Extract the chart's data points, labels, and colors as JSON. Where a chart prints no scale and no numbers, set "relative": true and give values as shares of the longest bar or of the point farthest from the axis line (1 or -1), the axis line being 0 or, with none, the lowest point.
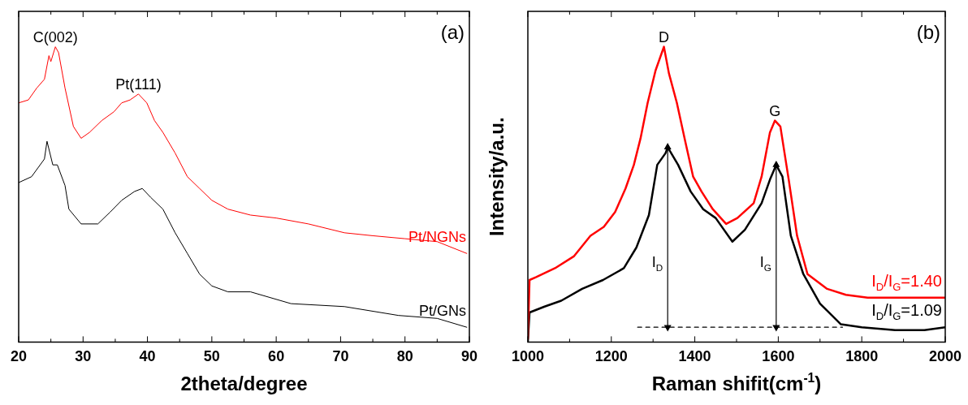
{
  "chart_data": [
    {
      "type": "line",
      "relative": true,
      "xlabel": "2theta/degree",
      "xlim": [
        20,
        90
      ],
      "tick_labels": "x",
      "xticks": [
        20,
        {
          "value": 25,
          "label": null
        },
        30,
        {
          "value": 35,
          "label": null
        },
        40,
        {
          "value": 45,
          "label": null
        },
        50,
        {
          "value": 55,
          "label": null
        },
        60,
        {
          "value": 65,
          "label": null
        },
        70,
        {
          "value": 75,
          "label": null
        },
        80,
        {
          "value": 85,
          "label": null
        },
        90
      ],
      "annotations": [
        "(a)",
        {
          "text": "C(002)",
          "x": 25.7,
          "y": 1.0
        },
        {
          "text": "Pt(111)",
          "x": 38.6,
          "y": 0.84
        }
      ],
      "series": [
        {
          "name": "Pt/NGNs",
          "color": "#ff0000",
          "x": [
            20,
            21.5,
            22.8,
            24,
            24.7,
            25,
            25.7,
            26.2,
            27.2,
            28.5,
            29.7,
            31,
            32.9,
            34.8,
            36,
            37.3,
            38.6,
            39.9,
            41.1,
            42.4,
            44.3,
            46.2,
            48.1,
            50,
            52.5,
            56,
            60,
            65,
            70.6,
            75,
            80,
            85,
            89.6
          ],
          "values": [
            0.81,
            0.82,
            0.86,
            0.89,
            0.97,
            0.95,
            1.0,
            0.98,
            0.86,
            0.73,
            0.69,
            0.71,
            0.75,
            0.78,
            0.81,
            0.82,
            0.84,
            0.81,
            0.75,
            0.71,
            0.64,
            0.56,
            0.52,
            0.48,
            0.45,
            0.43,
            0.42,
            0.4,
            0.37,
            0.36,
            0.35,
            0.34,
            0.3
          ]
        },
        {
          "name": "Pt/GNs",
          "color": "#000000",
          "x": [
            20,
            22,
            24,
            24.4,
            25.3,
            26,
            27.2,
            27.8,
            29.7,
            32.3,
            34.2,
            36,
            38,
            39.2,
            40.5,
            42.4,
            44.3,
            46.2,
            48.1,
            50,
            52.5,
            56,
            62.3,
            70.6,
            79,
            85,
            89.6
          ],
          "values": [
            0.54,
            0.56,
            0.62,
            0.68,
            0.6,
            0.6,
            0.53,
            0.45,
            0.4,
            0.4,
            0.44,
            0.48,
            0.51,
            0.52,
            0.49,
            0.45,
            0.37,
            0.3,
            0.23,
            0.19,
            0.17,
            0.17,
            0.13,
            0.12,
            0.09,
            0.08,
            0.05
          ]
        }
      ]
    },
    {
      "type": "line",
      "relative": true,
      "xlabel": "Raman shifit(cm$^{-1}$)",
      "ylabel": "Intensity/a.u.",
      "xlim": [
        1000,
        2000
      ],
      "tick_labels": "x",
      "xticks": [
        1000,
        {
          "value": 1100,
          "label": null
        },
        1200,
        {
          "value": 1300,
          "label": null
        },
        1400,
        {
          "value": 1500,
          "label": null
        },
        1600,
        {
          "value": 1700,
          "label": null
        },
        1800,
        {
          "value": 1900,
          "label": null
        },
        2000
      ],
      "annotations": [
        "(b)",
        {
          "text": "D",
          "x": 1326,
          "y": 1.0
        },
        {
          "text": "G",
          "x": 1592,
          "y": 0.75
        },
        {
          "text": "I$_{D}$",
          "x": 1335,
          "y": 0.27
        },
        {
          "text": "I$_{G}$",
          "x": 1595,
          "y": 0.27
        }
      ],
      "series": [
        {
          "name": "I$_{D}$/I$_{G}$=1.40",
          "color": "#ff0000",
          "x": [
            1000,
            1004,
            1020,
            1065,
            1110,
            1150,
            1182,
            1209,
            1234,
            1254,
            1270,
            1287,
            1306,
            1326,
            1338,
            1357,
            1377,
            1396,
            1416,
            1443,
            1475,
            1502,
            1541,
            1560,
            1580,
            1592,
            1605,
            1625,
            1645,
            1670,
            1717,
            1762,
            1814,
            1879,
            1943,
            2000
          ],
          "values": [
            0.01,
            0.21,
            0.22,
            0.25,
            0.29,
            0.36,
            0.39,
            0.44,
            0.52,
            0.6,
            0.69,
            0.81,
            0.92,
            1.0,
            0.91,
            0.81,
            0.68,
            0.56,
            0.51,
            0.45,
            0.4,
            0.42,
            0.47,
            0.56,
            0.71,
            0.75,
            0.73,
            0.55,
            0.36,
            0.23,
            0.18,
            0.16,
            0.15,
            0.15,
            0.15,
            0.15
          ]
        },
        {
          "name": "I$_{D}$/I$_{G}$=1.09",
          "color": "#000000",
          "x": [
            1000,
            1004,
            1040,
            1080,
            1130,
            1180,
            1230,
            1260,
            1290,
            1310,
            1330,
            1335,
            1360,
            1390,
            1420,
            1450,
            1490,
            1520,
            1560,
            1580,
            1595,
            1610,
            1630,
            1660,
            1700,
            1750,
            1800,
            1880,
            1950,
            2000
          ],
          "values": [
            0,
            0.1,
            0.12,
            0.14,
            0.18,
            0.21,
            0.25,
            0.32,
            0.43,
            0.6,
            0.64,
            0.66,
            0.6,
            0.51,
            0.45,
            0.42,
            0.34,
            0.38,
            0.47,
            0.55,
            0.6,
            0.56,
            0.36,
            0.23,
            0.13,
            0.06,
            0.05,
            0.04,
            0.04,
            0.05
          ]
        },
        {
          "color": "#000000",
          "line_style": "dashed",
          "x": [
            1263,
            1754
          ],
          "values": [
            0.05,
            0.05
          ]
        },
        {
          "color": "#000000",
          "marker": "triangle",
          "x": [
            1335,
            1335
          ],
          "values": [
            0.05,
            0.66
          ]
        },
        {
          "color": "#000000",
          "marker": "triangle",
          "x": [
            1595,
            1595
          ],
          "values": [
            0.05,
            0.6
          ]
        }
      ]
    }
  ]
}
